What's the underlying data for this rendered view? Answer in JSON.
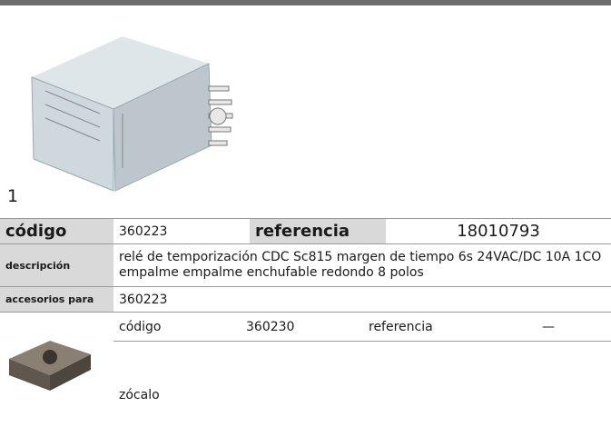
{
  "page_number": "1",
  "table": {
    "code_label": "código",
    "code": "360223",
    "reference_label": "referencia",
    "reference": "18010793",
    "description_label": "descripción",
    "description": "relé de temporización  CDC Sc815 margen de tiempo 6s 24VAC/DC 10A 1CO empalme empalme enchufable redondo 8 polos",
    "accessories_label": "accesorios para",
    "accessories_for": "360223"
  },
  "accessory": {
    "code_label": "código",
    "code": "360230",
    "reference_label": "referencia",
    "reference": "—",
    "name": "zócalo"
  }
}
